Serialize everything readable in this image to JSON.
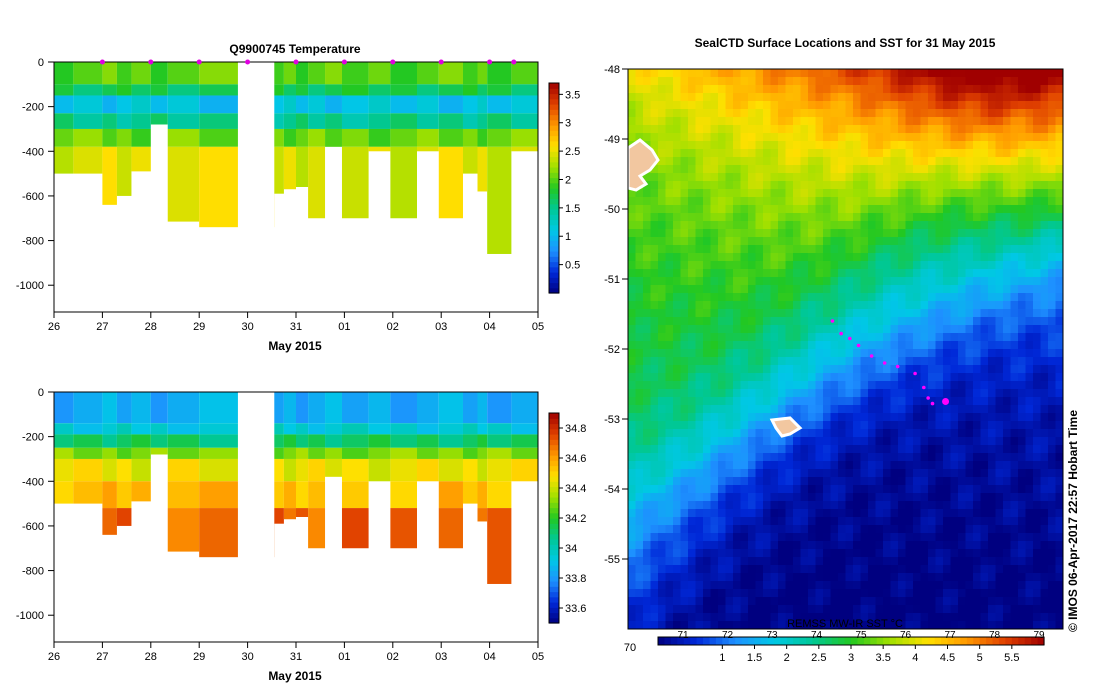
{
  "profile_time_axis": {
    "tick_labels": [
      "26",
      "27",
      "28",
      "29",
      "30",
      "31",
      "01",
      "02",
      "03",
      "04",
      "05"
    ],
    "label": "May 2015",
    "depth_ticks": [
      0,
      -200,
      -400,
      -600,
      -800,
      -1000
    ],
    "depth_range": [
      -1120,
      0
    ]
  },
  "casts": [
    {
      "t": 26.0,
      "depth": 500
    },
    {
      "t": 26.4,
      "depth": 500
    },
    {
      "t": 27.0,
      "depth": 640
    },
    {
      "t": 27.3,
      "depth": 600
    },
    {
      "t": 27.6,
      "depth": 490
    },
    {
      "t": 28.0,
      "depth": 280
    },
    {
      "t": 28.35,
      "depth": 715
    },
    {
      "t": 29.0,
      "depth": 740
    },
    {
      "t": 30.55,
      "depth": 590
    },
    {
      "t": 30.75,
      "depth": 570
    },
    {
      "t": 31.0,
      "depth": 560
    },
    {
      "t": 31.25,
      "depth": 700
    },
    {
      "t": 31.6,
      "depth": 380
    },
    {
      "t": 31.95,
      "depth": 700
    },
    {
      "t": 32.5,
      "depth": 400
    },
    {
      "t": 32.95,
      "depth": 700
    },
    {
      "t": 33.5,
      "depth": 400
    },
    {
      "t": 33.95,
      "depth": 700
    },
    {
      "t": 34.45,
      "depth": 500
    },
    {
      "t": 34.75,
      "depth": 580
    },
    {
      "t": 34.95,
      "depth": 860
    },
    {
      "t": 35.45,
      "depth": 400
    }
  ],
  "chart_data": [
    {
      "type": "heatmap",
      "title": "Q9900745  Temperature",
      "xlabel": "May 2015",
      "ylabel": "",
      "x_tick_labels": [
        "26",
        "27",
        "28",
        "29",
        "30",
        "31",
        "01",
        "02",
        "03",
        "04",
        "05"
      ],
      "ylim": [
        -1120,
        0
      ],
      "y_ticks": [
        0,
        -200,
        -400,
        -600,
        -800,
        -1000
      ],
      "colorbar": {
        "range": [
          0,
          3.7
        ],
        "tick_labels": [
          "0.5",
          "1",
          "1.5",
          "2",
          "2.5",
          "3",
          "3.5"
        ],
        "tick_values": [
          0.5,
          1,
          1.5,
          2,
          2.5,
          3,
          3.5
        ]
      },
      "profile_layers": [
        {
          "depth_to": 100,
          "value": 2.0
        },
        {
          "depth_to": 150,
          "value": 1.7
        },
        {
          "depth_to": 230,
          "value": 1.1
        },
        {
          "depth_to": 300,
          "value": 1.5
        },
        {
          "depth_to": 380,
          "value": 2.05
        },
        {
          "depth_to": 1200,
          "value": 2.45
        }
      ],
      "marker_times": [
        27,
        28,
        29,
        30,
        31,
        32,
        33,
        34,
        35,
        35.5
      ]
    },
    {
      "type": "heatmap",
      "title": "",
      "xlabel": "May 2015",
      "ylabel": "",
      "x_tick_labels": [
        "26",
        "27",
        "28",
        "29",
        "30",
        "31",
        "01",
        "02",
        "03",
        "04",
        "05"
      ],
      "ylim": [
        -1120,
        0
      ],
      "y_ticks": [
        0,
        -200,
        -400,
        -600,
        -800,
        -1000
      ],
      "colorbar": {
        "range": [
          33.5,
          34.9
        ],
        "tick_labels": [
          "33.6",
          "33.8",
          "34",
          "34.2",
          "34.4",
          "34.6",
          "34.8"
        ],
        "tick_values": [
          33.6,
          33.8,
          34,
          34.2,
          34.4,
          34.6,
          34.8
        ]
      },
      "profile_layers": [
        {
          "depth_to": 140,
          "value": 33.85
        },
        {
          "depth_to": 190,
          "value": 33.95
        },
        {
          "depth_to": 250,
          "value": 34.12
        },
        {
          "depth_to": 300,
          "value": 34.3
        },
        {
          "depth_to": 400,
          "value": 34.45
        },
        {
          "depth_to": 520,
          "value": 34.55
        },
        {
          "depth_to": 1200,
          "value": 34.7
        }
      ]
    },
    {
      "type": "heatmap",
      "title": "SealCTD Surface Locations and SST for 31 May 2015",
      "xlabel": "",
      "ylabel": "",
      "lat_range": [
        -56,
        -48
      ],
      "y_tick_labels": [
        "-48",
        "-49",
        "-50",
        "-51",
        "-52",
        "-53",
        "-54",
        "-55"
      ],
      "y_tick_values": [
        -48,
        -49,
        -50,
        -51,
        -52,
        -53,
        -54,
        -55
      ],
      "colorbar": {
        "range": [
          0,
          6.0
        ],
        "celsius_tick_labels": [
          "1",
          "1.5",
          "2",
          "2.5",
          "3",
          "3.5",
          "4",
          "4.5",
          "5",
          "5.5"
        ],
        "celsius_tick_values": [
          1,
          1.5,
          2,
          2.5,
          3,
          3.5,
          4,
          4.5,
          5,
          5.5
        ],
        "fahrenheit_labels": [
          "71",
          "72",
          "73",
          "74",
          "75",
          "76",
          "77",
          "78",
          "79"
        ],
        "left_label": "70",
        "overlay_label": "REMSS MW-IR SST °C"
      },
      "copyright": "© IMOS 06-Apr-2017 22:57 Hobart Time",
      "track_points": [
        {
          "lon": 0.47,
          "lat": -51.6
        },
        {
          "lon": 0.49,
          "lat": -51.78
        },
        {
          "lon": 0.51,
          "lat": -51.85
        },
        {
          "lon": 0.53,
          "lat": -51.95
        },
        {
          "lon": 0.56,
          "lat": -52.1
        },
        {
          "lon": 0.59,
          "lat": -52.2
        },
        {
          "lon": 0.62,
          "lat": -52.25
        },
        {
          "lon": 0.66,
          "lat": -52.35
        },
        {
          "lon": 0.68,
          "lat": -52.55
        },
        {
          "lon": 0.69,
          "lat": -52.7
        },
        {
          "lon": 0.7,
          "lat": -52.78
        }
      ]
    }
  ]
}
